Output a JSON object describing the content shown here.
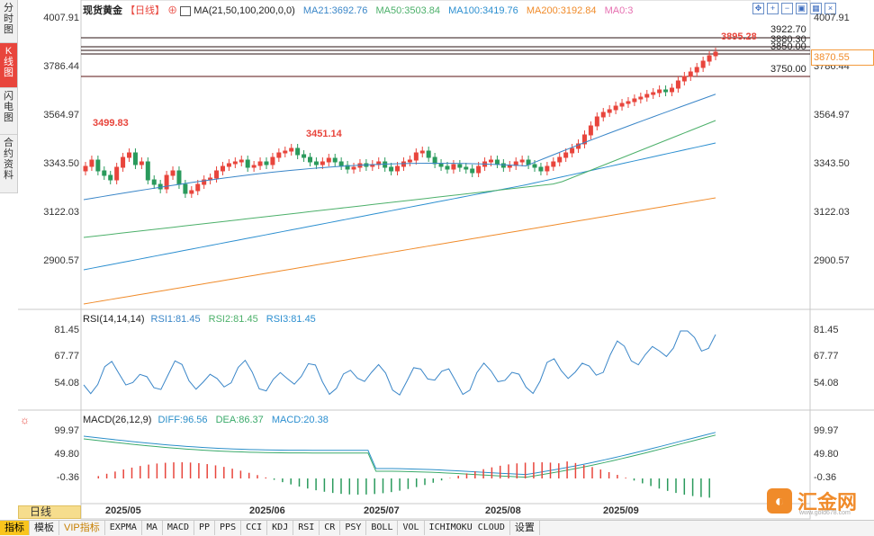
{
  "side_tabs": [
    {
      "label": "分时图",
      "active": false
    },
    {
      "label": "K线图",
      "active": true
    },
    {
      "label": "闪电图",
      "active": false
    },
    {
      "label": "合约资料",
      "active": false
    }
  ],
  "header": {
    "instrument": "现货黄金",
    "period_tag": "【日线】",
    "ma_label": "MA(21,50,100,200,0,0)",
    "ma21": "MA21:3692.76",
    "ma50": "MA50:3503.84",
    "ma100": "MA100:3419.76",
    "ma200": "MA200:3192.84",
    "ma0": "MA0:3"
  },
  "colors": {
    "up": "#e8453c",
    "down": "#2a9a5c",
    "ma21": "#3a86c8",
    "ma50": "#4cb06a",
    "ma100": "#2c8fd0",
    "ma200": "#f08b2a",
    "rsi": "#3a86c8",
    "diff": "#2b8fc9",
    "dea": "#3aaa6a",
    "ma0": "#e66fb0"
  },
  "price_axis": [
    "4007.91",
    "3786.44",
    "3564.97",
    "3343.50",
    "3122.03",
    "2900.57"
  ],
  "price_annotations": {
    "high1": "3499.83",
    "high2": "3451.14",
    "high3": "3895.28"
  },
  "hlines": [
    "3922.70",
    "3880.30",
    "3850.00",
    "3750.00"
  ],
  "current_price": "3870.55",
  "rsi": {
    "title": "RSI(14,14,14)",
    "rsi1": "RSI1:81.45",
    "rsi2": "RSI2:81.45",
    "rsi3": "RSI3:81.45",
    "axis": [
      "81.45",
      "67.77",
      "54.08"
    ]
  },
  "macd": {
    "title": "MACD(26,12,9)",
    "diff": "DIFF:96.56",
    "dea": "DEA:86.37",
    "macd": "MACD:20.38",
    "axis": [
      "99.97",
      "49.80",
      "-0.36"
    ]
  },
  "x_axis": [
    "2025/05",
    "2025/06",
    "2025/07",
    "2025/08",
    "2025/09"
  ],
  "period_button": "日线",
  "bottom_buttons": [
    "指标",
    "模板",
    "VIP指标",
    "EXPMA",
    "MA",
    "MACD",
    "PP",
    "PPS",
    "CCI",
    "KDJ",
    "RSI",
    "CR",
    "PSY",
    "BOLL",
    "VOL",
    "ICHIMOKU CLOUD",
    "设置"
  ],
  "logo_text": "汇金网",
  "logo_sub": "www.gold678.com",
  "toolbar_icons": [
    "move-icon",
    "zoom-in-icon",
    "zoom-out-icon",
    "fit-icon",
    "grid-icon",
    "close-icon"
  ]
}
